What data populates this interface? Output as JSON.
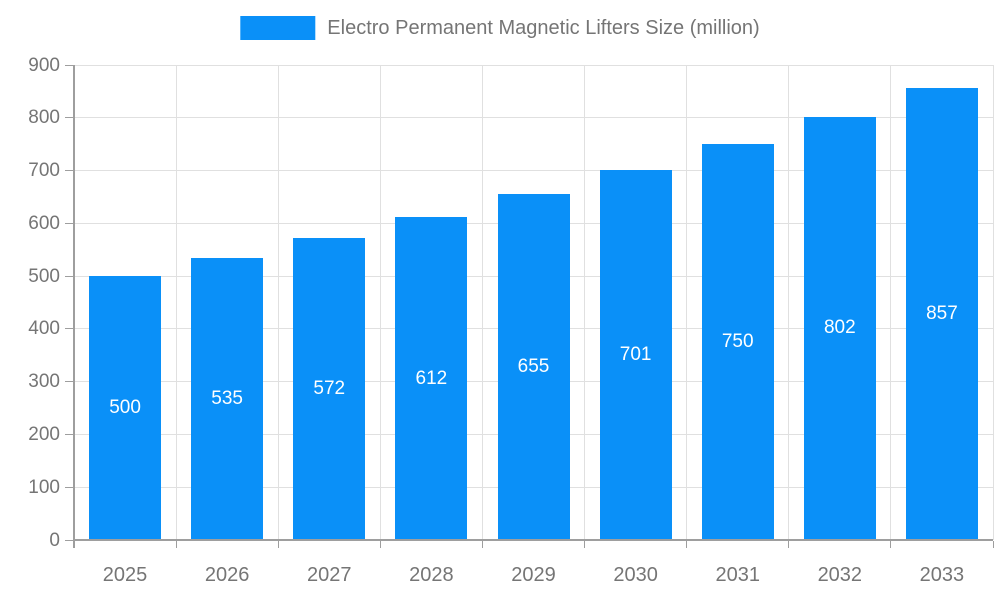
{
  "title": "Electro Permanent Magnetic Lifters Size (million)",
  "colors": {
    "bar": "#0a90f8",
    "value_label": "#ffffff",
    "axis_label": "#757575",
    "title_text": "#757575",
    "gridline": "#e0e0e0",
    "axis_line": "#9e9e9e",
    "background": "#ffffff"
  },
  "chart_data": {
    "type": "bar",
    "title": "Electro Permanent Magnetic Lifters Size (million)",
    "categories": [
      "2025",
      "2026",
      "2027",
      "2028",
      "2029",
      "2030",
      "2031",
      "2032",
      "2033"
    ],
    "values": [
      500,
      535,
      572,
      612,
      655,
      701,
      750,
      802,
      857
    ],
    "series_name": "Electro Permanent Magnetic Lifters Size (million)",
    "xlabel": "",
    "ylabel": "",
    "ylim": [
      0,
      900
    ],
    "y_ticks": [
      0,
      100,
      200,
      300,
      400,
      500,
      600,
      700,
      800,
      900
    ],
    "grid": true,
    "legend_position": "top-center",
    "value_label_position": "inside-center"
  }
}
